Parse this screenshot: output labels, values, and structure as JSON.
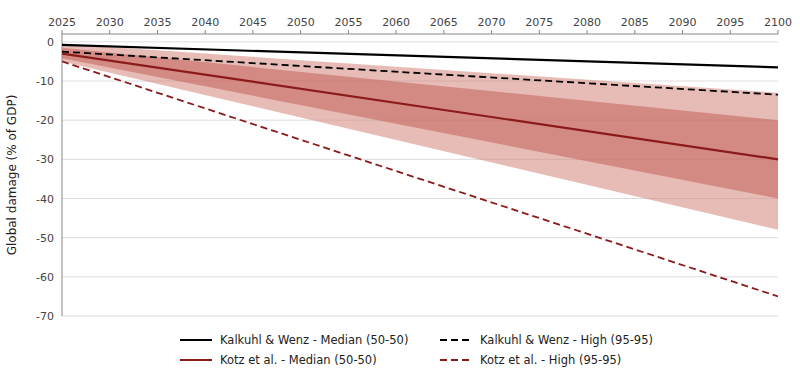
{
  "chart_data": {
    "type": "line",
    "ylabel": "Global damage (% of GDP)",
    "x": [
      2025,
      2100
    ],
    "xlim": [
      2025,
      2100
    ],
    "xticks": [
      2025,
      2030,
      2035,
      2040,
      2045,
      2050,
      2055,
      2060,
      2065,
      2070,
      2075,
      2080,
      2085,
      2090,
      2095,
      2100
    ],
    "ylim": [
      -70,
      2
    ],
    "yticks": [
      0,
      -10,
      -20,
      -30,
      -40,
      -50,
      -60,
      -70
    ],
    "grid": true,
    "legend": "bottom",
    "series": [
      {
        "name": "Kalkuhl & Wenz - Median (50-50)",
        "color": "#000000",
        "line_style": "solid",
        "values": [
          -0.8,
          -6.5
        ]
      },
      {
        "name": "Kotz et al. - Median (50-50)",
        "color": "#8b1a1a",
        "line_style": "solid",
        "values": [
          -3.0,
          -30.0
        ]
      },
      {
        "name": "Kalkuhl & Wenz - High (95-95)",
        "color": "#000000",
        "line_style": "dashed",
        "values": [
          -2.5,
          -13.5
        ]
      },
      {
        "name": "Kotz et al. - High (95-95)",
        "color": "#8b1a1a",
        "line_style": "dashed",
        "values": [
          -5.0,
          -65.0
        ]
      }
    ],
    "bands": [
      {
        "color": "#d4857a",
        "upper": [
          -0.5,
          -13.0
        ],
        "lower": [
          -5.0,
          -48.0
        ]
      },
      {
        "color": "#c26057",
        "upper": [
          -1.5,
          -20.0
        ],
        "lower": [
          -4.2,
          -40.0
        ]
      }
    ]
  }
}
